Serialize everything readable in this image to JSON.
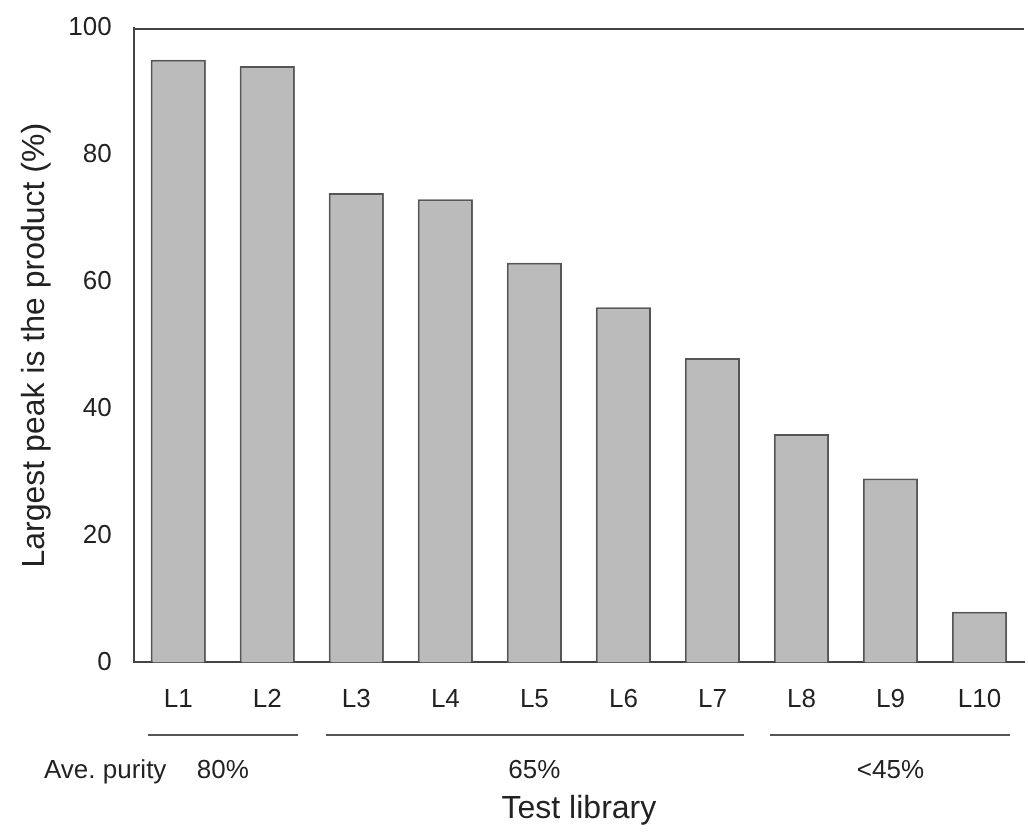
{
  "chart_data": {
    "type": "bar",
    "xlabel": "Test library",
    "ylabel": "Largest peak is the product (%)",
    "categories": [
      "L1",
      "L2",
      "L3",
      "L4",
      "L5",
      "L6",
      "L7",
      "L8",
      "L9",
      "L10"
    ],
    "values": [
      95,
      94,
      74,
      73,
      63,
      56,
      48,
      36,
      29,
      8
    ],
    "color": "#bbbbbb",
    "ylim": [
      0,
      100
    ],
    "yticks": [
      0,
      20,
      40,
      60,
      80,
      100
    ],
    "grid": false,
    "legend": false,
    "annotations": [
      "Ave. purity",
      "80%",
      "65%",
      "<45%"
    ]
  }
}
